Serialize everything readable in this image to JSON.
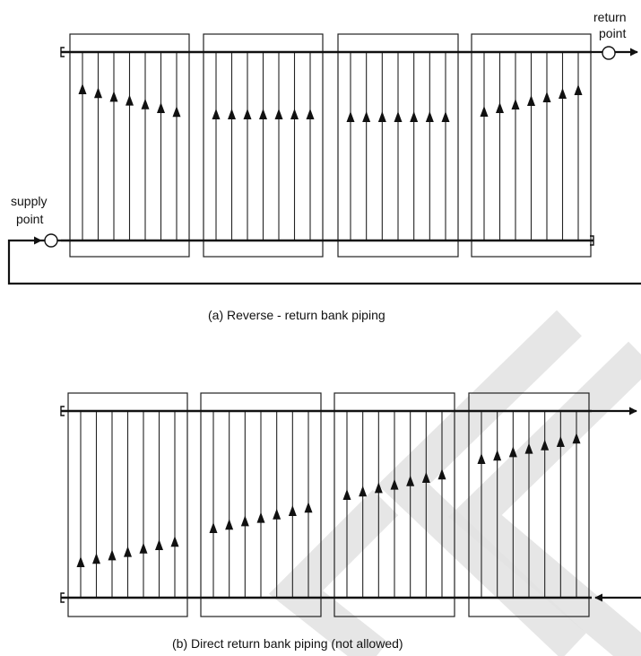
{
  "diagram_a": {
    "caption": "(a) Reverse - return bank piping",
    "supply_label_line1": "supply",
    "supply_label_line2": "point",
    "return_label_line1": "return",
    "return_label_line2": "point"
  },
  "diagram_b": {
    "caption": "(b)  Direct return bank piping  (not allowed)"
  },
  "colors": {
    "ink": "#111111",
    "watermark": "#e2e2e2"
  }
}
